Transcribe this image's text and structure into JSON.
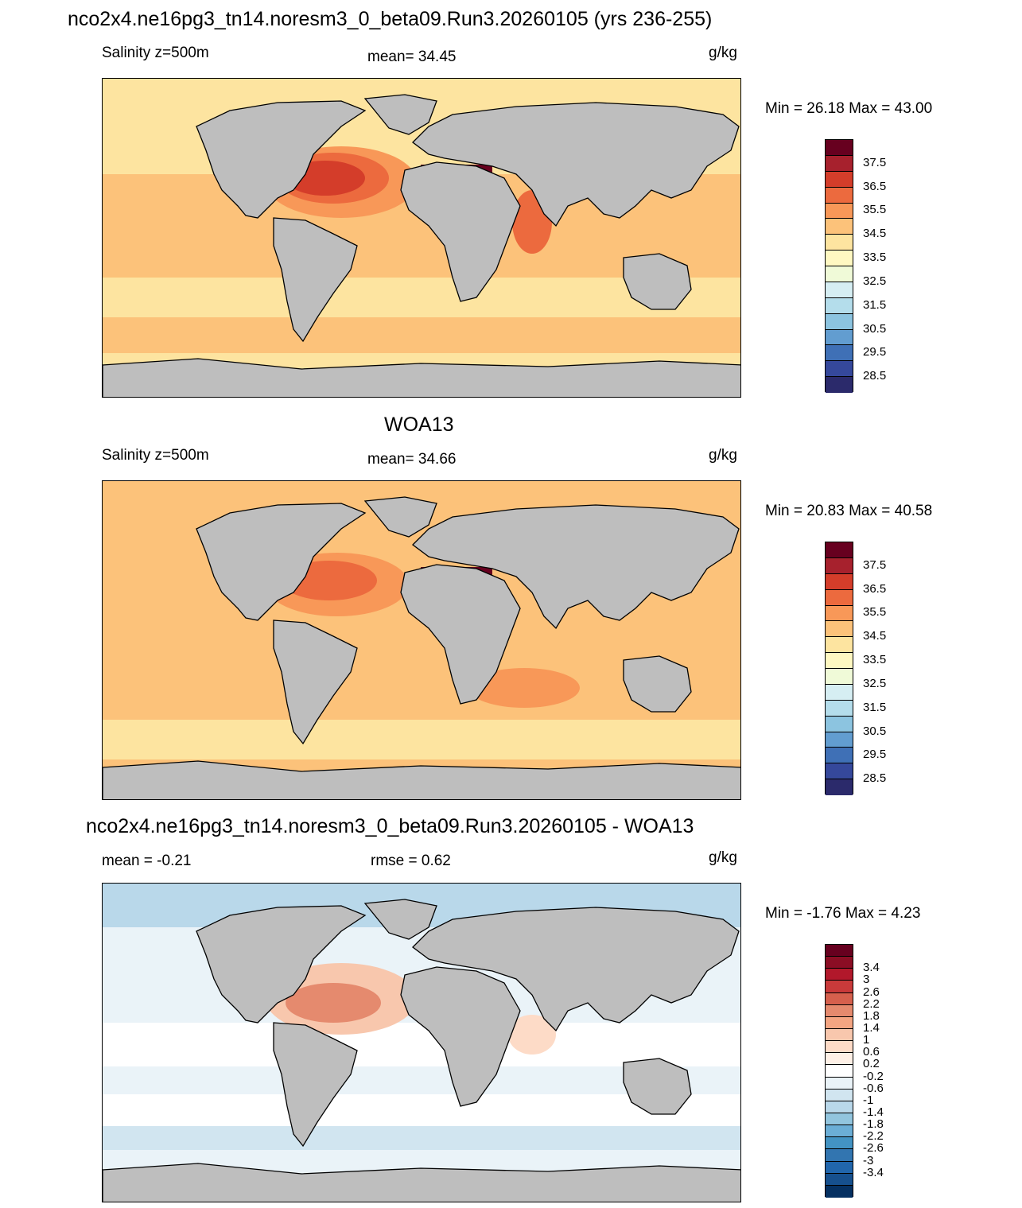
{
  "figure_title": "nco2x4.ne16pg3_tn14.noresm3_0_beta09.Run3.20260105 (yrs 236-255)",
  "panels": [
    {
      "title": "",
      "left_label": "Salinity z=500m",
      "center_label": "mean=  34.45",
      "units": "g/kg",
      "minmax": "Min =  26.18 Max =  43.00",
      "colorbar": {
        "colors": [
          "#67001f",
          "#a7212d",
          "#d43d2a",
          "#ec6a3e",
          "#f89858",
          "#fcc27a",
          "#fde4a0",
          "#fff8c2",
          "#f0fad8",
          "#d6eef3",
          "#b4ddeb",
          "#8cc4e0",
          "#629dd0",
          "#3f70b6",
          "#35489b",
          "#2b2a6b"
        ],
        "labels": [
          "37.5",
          "36.5",
          "35.5",
          "34.5",
          "33.5",
          "32.5",
          "31.5",
          "30.5",
          "29.5",
          "28.5"
        ]
      },
      "map_scheme": "model"
    },
    {
      "title": "WOA13",
      "left_label": "Salinity z=500m",
      "center_label": "mean=  34.66",
      "units": "g/kg",
      "minmax": "Min =  20.83 Max =  40.58",
      "colorbar": {
        "colors": [
          "#67001f",
          "#a7212d",
          "#d43d2a",
          "#ec6a3e",
          "#f89858",
          "#fcc27a",
          "#fde4a0",
          "#fff8c2",
          "#f0fad8",
          "#d6eef3",
          "#b4ddeb",
          "#8cc4e0",
          "#629dd0",
          "#3f70b6",
          "#35489b",
          "#2b2a6b"
        ],
        "labels": [
          "37.5",
          "36.5",
          "35.5",
          "34.5",
          "33.5",
          "32.5",
          "31.5",
          "30.5",
          "29.5",
          "28.5"
        ]
      },
      "map_scheme": "obs"
    },
    {
      "title": "nco2x4.ne16pg3_tn14.noresm3_0_beta09.Run3.20260105 - WOA13",
      "left_label": "mean =  -0.21",
      "center_label": "rmse =   0.62",
      "units": "g/kg",
      "minmax": "Min =  -1.76 Max =   4.23",
      "colorbar": {
        "colors": [
          "#67001f",
          "#8b0d24",
          "#b2182b",
          "#c93a3a",
          "#d6604d",
          "#e58a6e",
          "#f4a582",
          "#f8c7ad",
          "#fddbc7",
          "#fef0e6",
          "#ffffff",
          "#eaf3f8",
          "#d1e5f0",
          "#b9d8ea",
          "#92c5de",
          "#6baed6",
          "#4393c3",
          "#3275b0",
          "#2166ac",
          "#16508e",
          "#053061"
        ],
        "labels": [
          "3.4",
          "3",
          "2.6",
          "2.2",
          "1.8",
          "1.4",
          "1",
          "0.6",
          "0.2",
          "-0.2",
          "-0.6",
          "-1",
          "-1.4",
          "-1.8",
          "-2.2",
          "-2.6",
          "-3",
          "-3.4"
        ]
      },
      "map_scheme": "diff"
    }
  ],
  "colors": {
    "land": "#bebebe",
    "coast": "#000000"
  }
}
